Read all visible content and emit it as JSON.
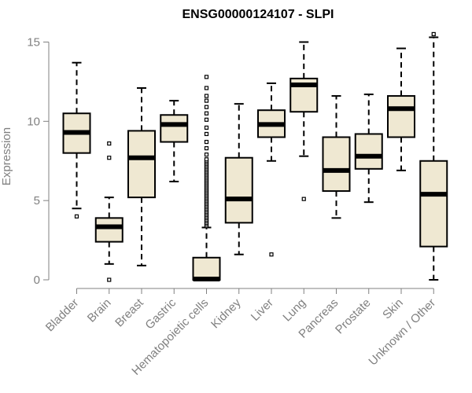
{
  "chart_data": {
    "type": "boxplot",
    "title": "ENSG00000124107 - SLPI",
    "xlabel": "",
    "ylabel": "Expression",
    "ylim": [
      0,
      15
    ],
    "yticks": [
      0,
      5,
      10,
      15
    ],
    "grid": false,
    "box_fill": "#EFE8D2",
    "categories": [
      "Bladder",
      "Brain",
      "Breast",
      "Gastric",
      "Hematopoietic cells",
      "Kidney",
      "Liver",
      "Lung",
      "Pancreas",
      "Prostate",
      "Skin",
      "Unknown / Other"
    ],
    "boxes": [
      {
        "min": 4.5,
        "q1": 8.0,
        "median": 9.3,
        "q3": 10.5,
        "max": 13.7,
        "outliers": [
          4.0
        ]
      },
      {
        "min": 1.0,
        "q1": 2.4,
        "median": 3.35,
        "q3": 3.9,
        "max": 5.2,
        "outliers": [
          0.0,
          7.7,
          8.6
        ]
      },
      {
        "min": 0.9,
        "q1": 5.2,
        "median": 7.7,
        "q3": 9.4,
        "max": 12.1,
        "outliers": []
      },
      {
        "min": 6.2,
        "q1": 8.7,
        "median": 9.8,
        "q3": 10.4,
        "max": 11.3,
        "outliers": []
      },
      {
        "min": 0.0,
        "q1": 0.0,
        "median": 0.05,
        "q3": 1.4,
        "max": 3.3,
        "outliers": [
          3.4,
          3.5,
          3.6,
          3.7,
          3.8,
          3.9,
          4.0,
          4.1,
          4.2,
          4.3,
          4.4,
          4.5,
          4.6,
          4.7,
          4.8,
          4.9,
          5.0,
          5.1,
          5.2,
          5.3,
          5.4,
          5.5,
          5.6,
          5.7,
          5.8,
          5.9,
          6.0,
          6.1,
          6.2,
          6.3,
          6.4,
          6.5,
          6.6,
          6.7,
          6.8,
          6.9,
          7.0,
          7.1,
          7.2,
          7.3,
          7.4,
          7.5,
          7.6,
          7.9,
          8.3,
          8.7,
          9.2,
          9.6,
          10.1,
          10.5,
          10.9,
          11.3,
          11.6,
          12.1,
          12.8
        ]
      },
      {
        "min": 1.6,
        "q1": 3.6,
        "median": 5.1,
        "q3": 7.7,
        "max": 11.1,
        "outliers": []
      },
      {
        "min": 7.5,
        "q1": 9.0,
        "median": 9.8,
        "q3": 10.7,
        "max": 12.4,
        "outliers": [
          1.6
        ]
      },
      {
        "min": 7.8,
        "q1": 10.6,
        "median": 12.3,
        "q3": 12.7,
        "max": 15.0,
        "outliers": [
          5.1
        ]
      },
      {
        "min": 3.9,
        "q1": 5.6,
        "median": 6.9,
        "q3": 9.0,
        "max": 11.6,
        "outliers": []
      },
      {
        "min": 4.9,
        "q1": 7.0,
        "median": 7.8,
        "q3": 9.2,
        "max": 11.7,
        "outliers": []
      },
      {
        "min": 6.9,
        "q1": 9.0,
        "median": 10.8,
        "q3": 11.6,
        "max": 14.6,
        "outliers": []
      },
      {
        "min": 0.0,
        "q1": 2.1,
        "median": 5.4,
        "q3": 7.5,
        "max": 15.3,
        "outliers": [
          15.5
        ]
      }
    ]
  }
}
